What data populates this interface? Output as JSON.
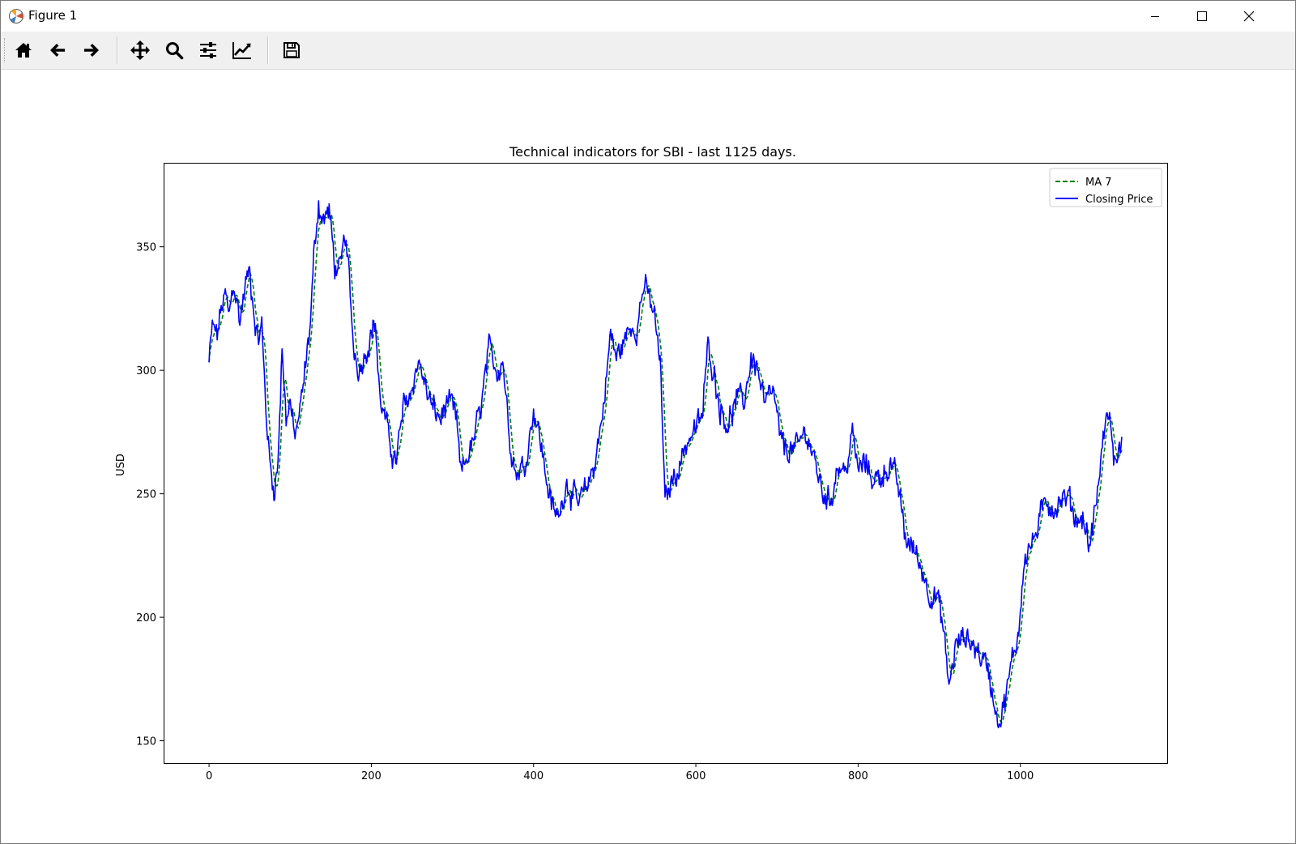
{
  "window": {
    "title": "Figure 1",
    "icon": "matplotlib-icon",
    "controls": [
      "minimize-icon",
      "maximize-icon",
      "close-icon"
    ]
  },
  "toolbar": {
    "buttons": [
      {
        "name": "home",
        "icon": "home-icon"
      },
      {
        "name": "back",
        "icon": "arrow-left-icon"
      },
      {
        "name": "forward",
        "icon": "arrow-right-icon"
      },
      {
        "name": "pan",
        "icon": "move-icon"
      },
      {
        "name": "zoom",
        "icon": "search-icon"
      },
      {
        "name": "configure-subplots",
        "icon": "sliders-icon"
      },
      {
        "name": "edit-axis",
        "icon": "line-chart-icon"
      },
      {
        "name": "save",
        "icon": "save-icon"
      }
    ]
  },
  "chart_data": {
    "type": "line",
    "title": "Technical indicators for SBI - last 1125 days.",
    "xlabel": "",
    "ylabel": "USD",
    "xlim": [
      -56,
      1181
    ],
    "ylim": [
      141,
      384
    ],
    "xticks": [
      0,
      200,
      400,
      600,
      800,
      1000
    ],
    "yticks": [
      150,
      200,
      250,
      300,
      350
    ],
    "grid": false,
    "legend": "top-right",
    "colors": {
      "ma7": "#008000",
      "close": "#0000ff"
    },
    "anchors": [
      [
        0,
        303
      ],
      [
        4,
        318
      ],
      [
        10,
        314
      ],
      [
        15,
        325
      ],
      [
        20,
        330
      ],
      [
        25,
        322
      ],
      [
        30,
        336
      ],
      [
        38,
        320
      ],
      [
        45,
        335
      ],
      [
        50,
        340
      ],
      [
        55,
        325
      ],
      [
        60,
        312
      ],
      [
        65,
        318
      ],
      [
        70,
        285
      ],
      [
        75,
        262
      ],
      [
        80,
        252
      ],
      [
        85,
        262
      ],
      [
        90,
        310
      ],
      [
        95,
        280
      ],
      [
        100,
        288
      ],
      [
        105,
        272
      ],
      [
        110,
        280
      ],
      [
        115,
        290
      ],
      [
        125,
        320
      ],
      [
        130,
        350
      ],
      [
        135,
        368
      ],
      [
        140,
        360
      ],
      [
        148,
        365
      ],
      [
        155,
        342
      ],
      [
        162,
        340
      ],
      [
        168,
        355
      ],
      [
        172,
        340
      ],
      [
        178,
        310
      ],
      [
        185,
        300
      ],
      [
        195,
        310
      ],
      [
        205,
        320
      ],
      [
        210,
        290
      ],
      [
        220,
        275
      ],
      [
        230,
        262
      ],
      [
        240,
        285
      ],
      [
        250,
        292
      ],
      [
        258,
        305
      ],
      [
        265,
        295
      ],
      [
        275,
        285
      ],
      [
        285,
        280
      ],
      [
        295,
        288
      ],
      [
        305,
        280
      ],
      [
        310,
        258
      ],
      [
        318,
        265
      ],
      [
        325,
        270
      ],
      [
        335,
        285
      ],
      [
        345,
        308
      ],
      [
        355,
        300
      ],
      [
        362,
        305
      ],
      [
        370,
        275
      ],
      [
        378,
        258
      ],
      [
        390,
        262
      ],
      [
        400,
        285
      ],
      [
        408,
        272
      ],
      [
        415,
        258
      ],
      [
        422,
        245
      ],
      [
        430,
        240
      ],
      [
        440,
        255
      ],
      [
        448,
        250
      ],
      [
        455,
        245
      ],
      [
        465,
        252
      ],
      [
        475,
        262
      ],
      [
        485,
        282
      ],
      [
        495,
        315
      ],
      [
        502,
        305
      ],
      [
        512,
        312
      ],
      [
        520,
        318
      ],
      [
        528,
        318
      ],
      [
        535,
        334
      ],
      [
        542,
        330
      ],
      [
        550,
        320
      ],
      [
        557,
        298
      ],
      [
        562,
        246
      ],
      [
        570,
        255
      ],
      [
        580,
        262
      ],
      [
        590,
        272
      ],
      [
        600,
        276
      ],
      [
        608,
        282
      ],
      [
        615,
        310
      ],
      [
        622,
        300
      ],
      [
        630,
        285
      ],
      [
        640,
        278
      ],
      [
        650,
        288
      ],
      [
        660,
        288
      ],
      [
        668,
        305
      ],
      [
        675,
        302
      ],
      [
        685,
        285
      ],
      [
        695,
        292
      ],
      [
        705,
        270
      ],
      [
        715,
        268
      ],
      [
        725,
        268
      ],
      [
        735,
        276
      ],
      [
        745,
        265
      ],
      [
        755,
        252
      ],
      [
        765,
        246
      ],
      [
        775,
        262
      ],
      [
        785,
        258
      ],
      [
        792,
        275
      ],
      [
        800,
        260
      ],
      [
        810,
        262
      ],
      [
        820,
        255
      ],
      [
        830,
        258
      ],
      [
        840,
        262
      ],
      [
        850,
        252
      ],
      [
        858,
        232
      ],
      [
        868,
        228
      ],
      [
        878,
        220
      ],
      [
        888,
        210
      ],
      [
        898,
        208
      ],
      [
        905,
        195
      ],
      [
        912,
        172
      ],
      [
        920,
        188
      ],
      [
        930,
        192
      ],
      [
        940,
        190
      ],
      [
        950,
        185
      ],
      [
        960,
        180
      ],
      [
        968,
        165
      ],
      [
        975,
        158
      ],
      [
        982,
        168
      ],
      [
        990,
        182
      ],
      [
        998,
        195
      ],
      [
        1005,
        225
      ],
      [
        1015,
        230
      ],
      [
        1025,
        240
      ],
      [
        1032,
        248
      ],
      [
        1042,
        244
      ],
      [
        1050,
        248
      ],
      [
        1060,
        248
      ],
      [
        1068,
        240
      ],
      [
        1078,
        240
      ],
      [
        1085,
        228
      ],
      [
        1095,
        250
      ],
      [
        1102,
        272
      ],
      [
        1110,
        285
      ],
      [
        1115,
        262
      ],
      [
        1120,
        268
      ],
      [
        1125,
        270
      ]
    ],
    "series": [
      {
        "name": "MA 7",
        "style": "dashed",
        "color": "#008000",
        "smoothing_window": 7
      },
      {
        "name": "Closing Price",
        "style": "solid",
        "color": "#0000ff",
        "noise_amplitude": 4.5
      }
    ]
  }
}
